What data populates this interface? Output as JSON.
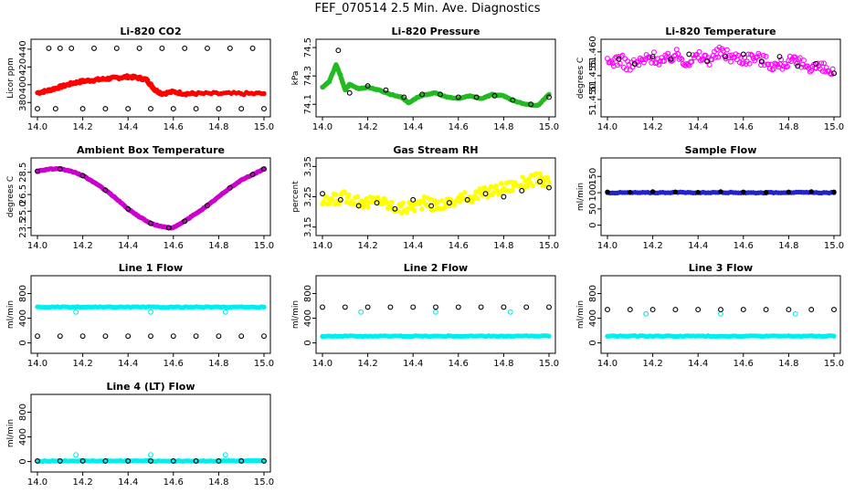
{
  "page_title": "FEF_070514  2.5 Min. Ave. Diagnostics",
  "chart_data": [
    {
      "type": "scatter",
      "title": "Li-820 CO2",
      "ylabel": "Licor ppm",
      "xlim": [
        14.0,
        15.0
      ],
      "xticks": [
        "14.0",
        "14.2",
        "14.4",
        "14.6",
        "14.8",
        "15.0"
      ],
      "ylim": [
        370,
        445
      ],
      "yticks": [
        "380",
        "400",
        "420",
        "440"
      ],
      "series": [
        {
          "name": "ave",
          "color": "#ff0000",
          "style": "filled",
          "x": [
            14.0,
            14.04,
            14.08,
            14.12,
            14.16,
            14.2,
            14.24,
            14.28,
            14.32,
            14.36,
            14.4,
            14.44,
            14.48,
            14.5,
            14.52,
            14.55,
            14.6,
            14.65,
            14.7,
            14.8,
            14.9,
            15.0
          ],
          "y": [
            391,
            393,
            396,
            399,
            402,
            404,
            405,
            406,
            407,
            408,
            409,
            408,
            406,
            400,
            394,
            390,
            392,
            390,
            390,
            390,
            390,
            390
          ]
        },
        {
          "name": "sample",
          "color": "#000000",
          "style": "open",
          "x": [
            14.05,
            14.1,
            14.15,
            14.25,
            14.35,
            14.45,
            14.55,
            14.65,
            14.75,
            14.85,
            14.95,
            14.0,
            14.08,
            14.2,
            14.3,
            14.4,
            14.5,
            14.6,
            14.7,
            14.8,
            14.9,
            15.0
          ],
          "y": [
            441,
            441,
            441,
            441,
            441,
            441,
            441,
            441,
            441,
            441,
            441,
            373,
            373,
            373,
            373,
            373,
            373,
            373,
            373,
            373,
            373,
            373
          ]
        }
      ]
    },
    {
      "type": "scatter",
      "title": "Li-820 Pressure",
      "ylabel": "kPa",
      "xlim": [
        14.0,
        15.0
      ],
      "xticks": [
        "14.0",
        "14.2",
        "14.4",
        "14.6",
        "14.8",
        "15.0"
      ],
      "ylim": [
        74.05,
        74.52
      ],
      "yticks": [
        "74.1",
        "74.3",
        "74.5"
      ],
      "series": [
        {
          "name": "ave",
          "color": "#22bb22",
          "style": "filled",
          "x": [
            14.0,
            14.03,
            14.06,
            14.08,
            14.1,
            14.12,
            14.16,
            14.2,
            14.25,
            14.3,
            14.35,
            14.38,
            14.42,
            14.46,
            14.5,
            14.55,
            14.6,
            14.65,
            14.7,
            14.75,
            14.8,
            14.85,
            14.9,
            14.95,
            15.0
          ],
          "y": [
            74.22,
            74.26,
            74.38,
            74.3,
            74.2,
            74.24,
            74.21,
            74.22,
            74.2,
            74.17,
            74.15,
            74.11,
            74.15,
            74.17,
            74.18,
            74.15,
            74.14,
            74.16,
            74.14,
            74.17,
            74.16,
            74.12,
            74.1,
            74.09,
            74.17
          ]
        },
        {
          "name": "sample",
          "color": "#000000",
          "style": "open",
          "x": [
            14.07,
            14.12,
            14.2,
            14.28,
            14.36,
            14.44,
            14.52,
            14.6,
            14.68,
            14.76,
            14.84,
            14.92,
            15.0
          ],
          "y": [
            74.48,
            74.18,
            74.23,
            74.2,
            74.15,
            74.17,
            74.17,
            74.15,
            74.15,
            74.16,
            74.13,
            74.1,
            74.15
          ]
        }
      ]
    },
    {
      "type": "scatter",
      "title": "Li-820 Temperature",
      "ylabel": "degrees C",
      "xlim": [
        14.0,
        15.0
      ],
      "xticks": [
        "14.0",
        "14.2",
        "14.4",
        "14.6",
        "14.8",
        "15.0"
      ],
      "ylim": [
        51.4475,
        51.4615
      ],
      "yticks": [
        "51.450",
        "51.455",
        "51.460"
      ],
      "series": [
        {
          "name": "ave",
          "color": "#ff00ff",
          "style": "open",
          "x": [
            14.0,
            14.05,
            14.1,
            14.15,
            14.2,
            14.25,
            14.3,
            14.35,
            14.4,
            14.45,
            14.5,
            14.55,
            14.6,
            14.65,
            14.7,
            14.75,
            14.8,
            14.85,
            14.9,
            14.95,
            15.0
          ],
          "y": [
            51.4575,
            51.4585,
            51.457,
            51.458,
            51.459,
            51.458,
            51.4595,
            51.458,
            51.459,
            51.4585,
            51.46,
            51.459,
            51.4585,
            51.459,
            51.458,
            51.457,
            51.458,
            51.4575,
            51.457,
            51.4565,
            51.4555
          ]
        },
        {
          "name": "sample",
          "color": "#000000",
          "style": "open",
          "x": [
            14.05,
            14.12,
            14.2,
            14.28,
            14.36,
            14.44,
            14.52,
            14.6,
            14.68,
            14.76,
            14.84,
            14.92,
            15.0
          ],
          "y": [
            51.4585,
            51.4575,
            51.459,
            51.4585,
            51.4595,
            51.458,
            51.459,
            51.4595,
            51.458,
            51.459,
            51.457,
            51.4575,
            51.4555
          ]
        }
      ]
    },
    {
      "type": "scatter",
      "title": "Ambient Box Temperature",
      "ylabel": "degrees C",
      "xlim": [
        14.0,
        15.0
      ],
      "xticks": [
        "14.0",
        "14.2",
        "14.4",
        "14.6",
        "14.8",
        "15.0"
      ],
      "ylim": [
        23.3,
        29.3
      ],
      "yticks": [
        "23.5",
        "25.0",
        "26.5",
        "28.5"
      ],
      "series": [
        {
          "name": "ave",
          "color": "#cc00cc",
          "style": "filled",
          "x": [
            14.0,
            14.05,
            14.1,
            14.15,
            14.2,
            14.25,
            14.3,
            14.35,
            14.4,
            14.45,
            14.5,
            14.55,
            14.6,
            14.65,
            14.7,
            14.75,
            14.8,
            14.85,
            14.9,
            14.95,
            15.0
          ],
          "y": [
            28.6,
            28.8,
            28.8,
            28.6,
            28.2,
            27.6,
            26.9,
            26.1,
            25.2,
            24.5,
            23.9,
            23.6,
            23.5,
            24.1,
            24.8,
            25.5,
            26.3,
            27.1,
            27.8,
            28.3,
            28.8
          ]
        },
        {
          "name": "sample",
          "color": "#000000",
          "style": "open",
          "x": [
            14.0,
            14.1,
            14.2,
            14.3,
            14.4,
            14.5,
            14.58,
            14.65,
            14.75,
            14.85,
            14.95,
            15.0
          ],
          "y": [
            28.6,
            28.8,
            28.2,
            26.9,
            25.2,
            23.9,
            23.5,
            24.1,
            25.5,
            27.1,
            28.3,
            28.8
          ]
        }
      ]
    },
    {
      "type": "scatter",
      "title": "Gas Stream RH",
      "ylabel": "percent",
      "xlim": [
        14.0,
        15.0
      ],
      "xticks": [
        "14.0",
        "14.2",
        "14.4",
        "14.6",
        "14.8",
        "15.0"
      ],
      "ylim": [
        3.14,
        3.36
      ],
      "yticks": [
        "3.15",
        "3.25",
        "3.35"
      ],
      "series": [
        {
          "name": "ave",
          "color": "#ffff00",
          "style": "filled",
          "x": [
            14.0,
            14.05,
            14.1,
            14.15,
            14.2,
            14.25,
            14.3,
            14.35,
            14.4,
            14.45,
            14.5,
            14.55,
            14.6,
            14.65,
            14.7,
            14.75,
            14.8,
            14.85,
            14.9,
            14.95,
            15.0
          ],
          "y": [
            3.23,
            3.24,
            3.25,
            3.24,
            3.23,
            3.24,
            3.22,
            3.21,
            3.22,
            3.23,
            3.22,
            3.23,
            3.24,
            3.25,
            3.26,
            3.27,
            3.28,
            3.29,
            3.3,
            3.31,
            3.3
          ]
        },
        {
          "name": "sample",
          "color": "#000000",
          "style": "open",
          "x": [
            14.0,
            14.08,
            14.16,
            14.24,
            14.32,
            14.4,
            14.48,
            14.56,
            14.64,
            14.72,
            14.8,
            14.88,
            14.96,
            15.0
          ],
          "y": [
            3.26,
            3.24,
            3.22,
            3.23,
            3.21,
            3.24,
            3.22,
            3.23,
            3.24,
            3.26,
            3.25,
            3.27,
            3.3,
            3.28
          ]
        }
      ]
    },
    {
      "type": "scatter",
      "title": "Sample Flow",
      "ylabel": "ml/min",
      "xlim": [
        14.0,
        15.0
      ],
      "xticks": [
        "14.0",
        "14.2",
        "14.4",
        "14.6",
        "14.8",
        "15.0"
      ],
      "ylim": [
        -15,
        190
      ],
      "yticks": [
        "0",
        "50",
        "100",
        "150"
      ],
      "series": [
        {
          "name": "ave",
          "color": "#2222cc",
          "style": "filled",
          "x": [
            14.0,
            14.1,
            14.2,
            14.3,
            14.4,
            14.5,
            14.6,
            14.7,
            14.8,
            14.9,
            15.0
          ],
          "y": [
            100,
            100,
            100,
            101,
            100,
            101,
            100,
            100,
            101,
            100,
            100
          ]
        },
        {
          "name": "sample",
          "color": "#000000",
          "style": "filled",
          "x": [
            14.0,
            14.1,
            14.2,
            14.3,
            14.4,
            14.5,
            14.6,
            14.7,
            14.8,
            14.9,
            15.0
          ],
          "y": [
            102,
            101,
            103,
            102,
            101,
            103,
            102,
            101,
            102,
            103,
            102
          ]
        }
      ]
    },
    {
      "type": "scatter",
      "title": "Line 1 Flow",
      "ylabel": "ml/min",
      "xlim": [
        14.0,
        15.0
      ],
      "xticks": [
        "14.0",
        "14.2",
        "14.4",
        "14.6",
        "14.8",
        "15.0"
      ],
      "ylim": [
        -80,
        1000
      ],
      "yticks": [
        "0",
        "400",
        "800"
      ],
      "series": [
        {
          "name": "ave",
          "color": "#00eeee",
          "style": "filled",
          "x": [
            14.0,
            14.1,
            14.2,
            14.3,
            14.4,
            14.5,
            14.6,
            14.7,
            14.8,
            14.9,
            15.0
          ],
          "y": [
            580,
            580,
            580,
            580,
            580,
            580,
            580,
            580,
            580,
            580,
            580
          ]
        },
        {
          "name": "outliers",
          "color": "#00eeee",
          "style": "open",
          "x": [
            14.17,
            14.5,
            14.83
          ],
          "y": [
            500,
            500,
            500
          ]
        },
        {
          "name": "sample",
          "color": "#000000",
          "style": "open",
          "x": [
            14.0,
            14.1,
            14.2,
            14.3,
            14.4,
            14.5,
            14.6,
            14.7,
            14.8,
            14.9,
            15.0
          ],
          "y": [
            110,
            110,
            110,
            110,
            110,
            110,
            110,
            110,
            110,
            110,
            110
          ]
        }
      ]
    },
    {
      "type": "scatter",
      "title": "Line 2 Flow",
      "ylabel": "ml/min",
      "xlim": [
        14.0,
        15.0
      ],
      "xticks": [
        "14.0",
        "14.2",
        "14.4",
        "14.6",
        "14.8",
        "15.0"
      ],
      "ylim": [
        -80,
        1000
      ],
      "yticks": [
        "0",
        "400",
        "800"
      ],
      "series": [
        {
          "name": "ave",
          "color": "#00eeee",
          "style": "filled",
          "x": [
            14.0,
            14.1,
            14.2,
            14.3,
            14.4,
            14.5,
            14.6,
            14.7,
            14.8,
            14.9,
            15.0
          ],
          "y": [
            110,
            110,
            110,
            110,
            110,
            110,
            110,
            110,
            110,
            110,
            110
          ]
        },
        {
          "name": "outliers",
          "color": "#00eeee",
          "style": "open",
          "x": [
            14.17,
            14.5,
            14.83
          ],
          "y": [
            500,
            500,
            500
          ]
        },
        {
          "name": "sample",
          "color": "#000000",
          "style": "open",
          "x": [
            14.0,
            14.1,
            14.2,
            14.3,
            14.4,
            14.5,
            14.6,
            14.7,
            14.8,
            14.9,
            15.0
          ],
          "y": [
            580,
            580,
            580,
            580,
            580,
            580,
            580,
            580,
            580,
            580,
            580
          ]
        }
      ]
    },
    {
      "type": "scatter",
      "title": "Line 3 Flow",
      "ylabel": "ml/min",
      "xlim": [
        14.0,
        15.0
      ],
      "xticks": [
        "14.0",
        "14.2",
        "14.4",
        "14.6",
        "14.8",
        "15.0"
      ],
      "ylim": [
        -80,
        1000
      ],
      "yticks": [
        "0",
        "400",
        "800"
      ],
      "series": [
        {
          "name": "ave",
          "color": "#00eeee",
          "style": "filled",
          "x": [
            14.0,
            14.1,
            14.2,
            14.3,
            14.4,
            14.5,
            14.6,
            14.7,
            14.8,
            14.9,
            15.0
          ],
          "y": [
            110,
            110,
            110,
            110,
            110,
            110,
            110,
            110,
            110,
            110,
            110
          ]
        },
        {
          "name": "outliers",
          "color": "#00eeee",
          "style": "open",
          "x": [
            14.17,
            14.5,
            14.83
          ],
          "y": [
            470,
            470,
            470
          ]
        },
        {
          "name": "sample",
          "color": "#000000",
          "style": "open",
          "x": [
            14.0,
            14.1,
            14.2,
            14.3,
            14.4,
            14.5,
            14.6,
            14.7,
            14.8,
            14.9,
            15.0
          ],
          "y": [
            540,
            540,
            540,
            540,
            540,
            540,
            540,
            540,
            540,
            540,
            540
          ]
        }
      ]
    },
    {
      "type": "scatter",
      "title": "Line 4 (LT) Flow",
      "ylabel": "ml/min",
      "xlim": [
        14.0,
        15.0
      ],
      "xticks": [
        "14.0",
        "14.2",
        "14.4",
        "14.6",
        "14.8",
        "15.0"
      ],
      "ylim": [
        -80,
        1000
      ],
      "yticks": [
        "0",
        "400",
        "800"
      ],
      "series": [
        {
          "name": "ave",
          "color": "#00eeee",
          "style": "filled",
          "x": [
            14.0,
            14.1,
            14.2,
            14.3,
            14.4,
            14.5,
            14.6,
            14.7,
            14.8,
            14.9,
            15.0
          ],
          "y": [
            10,
            10,
            10,
            10,
            10,
            10,
            10,
            10,
            10,
            10,
            10
          ]
        },
        {
          "name": "outliers",
          "color": "#00eeee",
          "style": "open",
          "x": [
            14.17,
            14.5,
            14.83
          ],
          "y": [
            110,
            110,
            110
          ]
        },
        {
          "name": "sample",
          "color": "#000000",
          "style": "open",
          "x": [
            14.0,
            14.1,
            14.2,
            14.3,
            14.4,
            14.5,
            14.6,
            14.7,
            14.8,
            14.9,
            15.0
          ],
          "y": [
            10,
            10,
            10,
            10,
            10,
            10,
            10,
            10,
            10,
            10,
            10
          ]
        }
      ]
    }
  ]
}
